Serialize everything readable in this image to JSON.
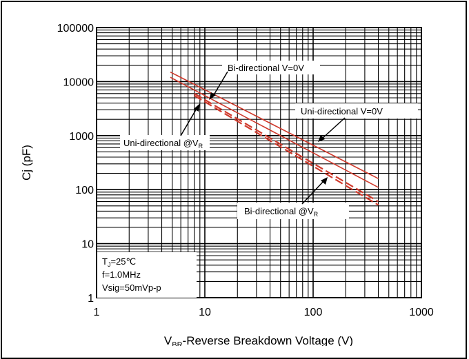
{
  "chart_data": {
    "type": "line",
    "xlabel_main": "V",
    "xlabel_sub": "BR",
    "xlabel_rest": "-Reverse Breakdown Voltage (V)",
    "ylabel": "Cj (pF)",
    "x_scale": "log",
    "y_scale": "log",
    "xlim": [
      1,
      1000
    ],
    "ylim": [
      1,
      100000
    ],
    "x_ticks": [
      "1",
      "10",
      "100",
      "1000"
    ],
    "y_ticks": [
      "1",
      "10",
      "100",
      "1000",
      "10000",
      "100000"
    ],
    "grid": true,
    "series_color": "#d03a2c",
    "series": [
      {
        "x": [
          4.8,
          400
        ],
        "y": [
          15000,
          160
        ],
        "style": "solid"
      },
      {
        "x": [
          4.8,
          400
        ],
        "y": [
          12000,
          110
        ],
        "style": "solid"
      },
      {
        "x": [
          8,
          400
        ],
        "y": [
          6000,
          60
        ],
        "style": "dashed"
      },
      {
        "x": [
          8,
          400
        ],
        "y": [
          5500,
          52
        ],
        "style": "dashed"
      }
    ],
    "annotations": [
      {
        "key": "bi0",
        "text": "Bi-directional V=0V"
      },
      {
        "key": "uni0",
        "text": "Uni-directional V=0V"
      },
      {
        "key": "univr_main",
        "text": "Uni-directional @V"
      },
      {
        "key": "univr_sub",
        "text": "R"
      },
      {
        "key": "bivr_main",
        "text": "Bi-directional @V"
      },
      {
        "key": "bivr_sub",
        "text": "R"
      }
    ],
    "conditions": {
      "tj_main": "T",
      "tj_sub": "J",
      "tj_rest": "=25℃",
      "freq": "f=1.0MHz",
      "vsig": "Vsig=50mVp-p"
    }
  }
}
